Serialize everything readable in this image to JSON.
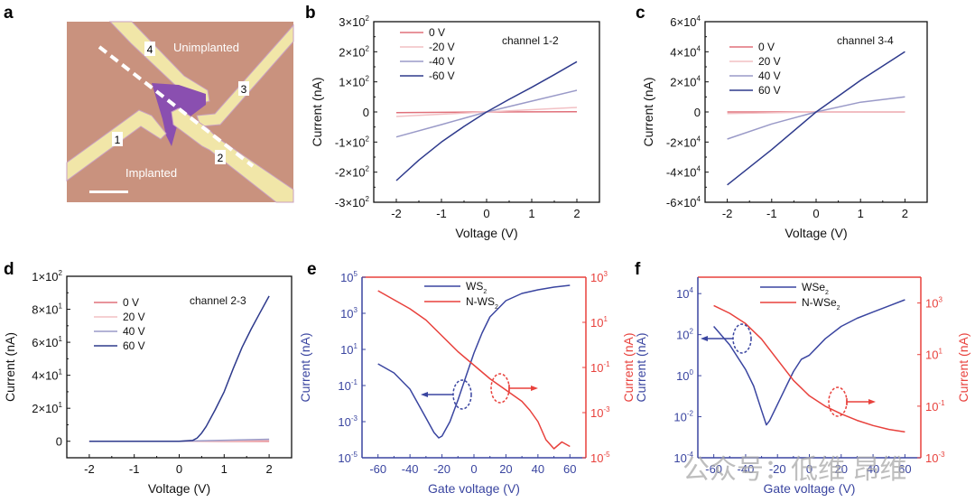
{
  "panels": {
    "a": {
      "label": "a",
      "unimplanted": "Unimplanted",
      "implanted": "Implanted",
      "electrodes": [
        "1",
        "2",
        "3",
        "4"
      ]
    }
  },
  "chart_data": [
    {
      "id": "b",
      "panel_label": "b",
      "type": "line",
      "title": "",
      "annotation": "channel 1-2",
      "xlabel": "Voltage (V)",
      "ylabel": "Current (nA)",
      "xlim": [
        -2.5,
        2.5
      ],
      "ylim": [
        -300,
        300
      ],
      "xticks": [
        -2,
        -1,
        0,
        1,
        2
      ],
      "xtick_labels": [
        "-2",
        "-1",
        "0",
        "1",
        "2"
      ],
      "yticks": [
        300,
        200,
        100,
        0,
        -100,
        -200,
        -300
      ],
      "ytick_labels": [
        [
          "3×10",
          "2"
        ],
        [
          "2×10",
          "2"
        ],
        [
          "1×10",
          "2"
        ],
        [
          "0",
          ""
        ],
        [
          "-1×10",
          "2"
        ],
        [
          "-2×10",
          "2"
        ],
        [
          "-3×10",
          "2"
        ]
      ],
      "legend_position": "top-left",
      "series": [
        {
          "name": "0 V",
          "color": "#e0707a",
          "x": [
            -2,
            0,
            2
          ],
          "y": [
            -2,
            0,
            1
          ]
        },
        {
          "name": "-20 V",
          "color": "#f2c0c4",
          "x": [
            -2,
            0,
            2
          ],
          "y": [
            -15,
            0,
            15
          ]
        },
        {
          "name": "-40 V",
          "color": "#9a9ac8",
          "x": [
            -2,
            -1,
            0,
            1,
            2
          ],
          "y": [
            -83,
            -42,
            0,
            36,
            72
          ]
        },
        {
          "name": "-60 V",
          "color": "#2e3a8c",
          "x": [
            -2,
            -1.5,
            -1,
            -0.5,
            0,
            0.5,
            1,
            1.5,
            2
          ],
          "y": [
            -228,
            -160,
            -100,
            -48,
            0,
            42,
            82,
            124,
            167
          ]
        }
      ]
    },
    {
      "id": "c",
      "panel_label": "c",
      "type": "line",
      "title": "",
      "annotation": "channel 3-4",
      "xlabel": "Voltage (V)",
      "ylabel": "Current (nA)",
      "xlim": [
        -2.5,
        2.5
      ],
      "ylim": [
        -60000,
        60000
      ],
      "xticks": [
        -2,
        -1,
        0,
        1,
        2
      ],
      "xtick_labels": [
        "-2",
        "-1",
        "0",
        "1",
        "2"
      ],
      "yticks": [
        60000,
        40000,
        20000,
        0,
        -20000,
        -40000,
        -60000
      ],
      "ytick_labels": [
        [
          "6×10",
          "4"
        ],
        [
          "4×10",
          "4"
        ],
        [
          "2×10",
          "4"
        ],
        [
          "0",
          ""
        ],
        [
          "-2×10",
          "4"
        ],
        [
          "-4×10",
          "4"
        ],
        [
          "-6×10",
          "4"
        ]
      ],
      "legend_position": "top-left",
      "series": [
        {
          "name": "0 V",
          "color": "#e0707a",
          "x": [
            -2,
            0,
            2
          ],
          "y": [
            0,
            0,
            0
          ]
        },
        {
          "name": "20 V",
          "color": "#f2c0c4",
          "x": [
            -2,
            0,
            2
          ],
          "y": [
            -1000,
            0,
            200
          ]
        },
        {
          "name": "40 V",
          "color": "#9a9ac8",
          "x": [
            -2,
            -1,
            0,
            1,
            2
          ],
          "y": [
            -18000,
            -8000,
            0,
            6500,
            10000
          ]
        },
        {
          "name": "60 V",
          "color": "#2e3a8c",
          "x": [
            -2,
            -1,
            0,
            1,
            2
          ],
          "y": [
            -48500,
            -25000,
            0,
            21000,
            40000
          ]
        }
      ]
    },
    {
      "id": "d",
      "panel_label": "d",
      "type": "line",
      "title": "",
      "annotation": "channel 2-3",
      "xlabel": "Voltage (V)",
      "ylabel": "Current (nA)",
      "xlim": [
        -2.5,
        2.5
      ],
      "ylim": [
        -10,
        100
      ],
      "xticks": [
        -2,
        -1,
        0,
        1,
        2
      ],
      "xtick_labels": [
        "-2",
        "-1",
        "0",
        "1",
        "2"
      ],
      "yticks": [
        100,
        80,
        60,
        40,
        20,
        0
      ],
      "ytick_labels": [
        [
          "1×10",
          "2"
        ],
        [
          "8×10",
          "1"
        ],
        [
          "6×10",
          "1"
        ],
        [
          "4×10",
          "1"
        ],
        [
          "2×10",
          "1"
        ],
        [
          "0",
          ""
        ]
      ],
      "legend_position": "top-left",
      "series": [
        {
          "name": "0 V",
          "color": "#e0707a",
          "x": [
            -2,
            0,
            2
          ],
          "y": [
            0,
            0,
            0
          ]
        },
        {
          "name": "20 V",
          "color": "#f2c0c4",
          "x": [
            -2,
            0,
            2
          ],
          "y": [
            0,
            0,
            0.5
          ]
        },
        {
          "name": "40 V",
          "color": "#9a9ac8",
          "x": [
            -2,
            0,
            2
          ],
          "y": [
            0,
            0,
            1.2
          ]
        },
        {
          "name": "60 V",
          "color": "#2e3a8c",
          "x": [
            -2,
            0,
            0.3,
            0.4,
            0.5,
            0.6,
            0.8,
            1.0,
            1.2,
            1.4,
            1.6,
            1.8,
            2.0
          ],
          "y": [
            0,
            0,
            0.5,
            2,
            5,
            9,
            19,
            30,
            44,
            57,
            68,
            78,
            88
          ]
        }
      ]
    },
    {
      "id": "e",
      "panel_label": "e",
      "type": "line",
      "title": "",
      "xlabel": "Gate voltage (V)",
      "ylabel": "Current (nA)",
      "ylabel_right": "Current (nA)",
      "xlim": [
        -70,
        70
      ],
      "ylim_log10": [
        -5,
        5
      ],
      "ylim_right_log10": [
        -5,
        3
      ],
      "xticks": [
        -60,
        -40,
        -20,
        0,
        20,
        40,
        60
      ],
      "xtick_labels": [
        "-60",
        "-40",
        "-20",
        "0",
        "20",
        "40",
        "60"
      ],
      "ytick_labels": [
        [
          "10",
          "5"
        ],
        [
          "10",
          "3"
        ],
        [
          "10",
          "1"
        ],
        [
          "10",
          "-1"
        ],
        [
          "10",
          "-3"
        ],
        [
          "10",
          "-5"
        ]
      ],
      "yticks_log10": [
        5,
        3,
        1,
        -1,
        -3,
        -5
      ],
      "ytick_right_labels": [
        [
          "10",
          "3"
        ],
        [
          "10",
          "1"
        ],
        [
          "10",
          "-1"
        ],
        [
          "10",
          "-3"
        ],
        [
          "10",
          "-5"
        ]
      ],
      "yticks_right_log10": [
        3,
        1,
        -1,
        -3,
        -5
      ],
      "legend_position": "top-center",
      "left_color": "#3a45a0",
      "right_color": "#e8413c",
      "series": [
        {
          "name": "WS",
          "sub": "2",
          "axis": "left",
          "color": "#3a45a0",
          "x": [
            -60,
            -50,
            -40,
            -35,
            -30,
            -25,
            -22,
            -20,
            -15,
            -10,
            -5,
            0,
            5,
            10,
            20,
            30,
            40,
            50,
            60
          ],
          "log10_y": [
            0.2,
            -0.3,
            -1.2,
            -2,
            -2.8,
            -3.6,
            -3.9,
            -3.8,
            -3.0,
            -1.8,
            -0.5,
            0.8,
            1.9,
            2.8,
            3.7,
            4.1,
            4.3,
            4.45,
            4.55
          ]
        },
        {
          "name": "N-WS",
          "sub": "2",
          "axis": "right",
          "color": "#e8413c",
          "x": [
            -60,
            -50,
            -40,
            -30,
            -20,
            -10,
            0,
            10,
            20,
            30,
            35,
            40,
            45,
            50,
            55,
            60
          ],
          "log10_y": [
            2.4,
            2.0,
            1.6,
            1.1,
            0.4,
            -0.3,
            -0.9,
            -1.5,
            -2.0,
            -2.5,
            -2.9,
            -3.4,
            -4.2,
            -4.6,
            -4.3,
            -4.5
          ]
        }
      ]
    },
    {
      "id": "f",
      "panel_label": "f",
      "type": "line",
      "title": "",
      "xlabel": "Gate voltage (V)",
      "ylabel": "Current (nA)",
      "ylabel_right": "Current (nA)",
      "xlim": [
        -70,
        70
      ],
      "ylim_log10": [
        -4,
        4.8
      ],
      "ylim_right_log10": [
        -3,
        4
      ],
      "xticks": [
        -60,
        -40,
        -20,
        0,
        20,
        40,
        60
      ],
      "xtick_labels": [
        "-60",
        "-40",
        "-20",
        "0",
        "20",
        "40",
        "60"
      ],
      "ytick_labels": [
        [
          "10",
          "4"
        ],
        [
          "10",
          "2"
        ],
        [
          "10",
          "0"
        ],
        [
          "10",
          "-2"
        ],
        [
          "10",
          "-4"
        ]
      ],
      "yticks_log10": [
        4,
        2,
        0,
        -2,
        -4
      ],
      "ytick_right_labels": [
        [
          "10",
          "3"
        ],
        [
          "10",
          "1"
        ],
        [
          "10",
          "-1"
        ],
        [
          "10",
          "-3"
        ]
      ],
      "yticks_right_log10": [
        3,
        1,
        -1,
        -3
      ],
      "legend_position": "top-center",
      "left_color": "#3a45a0",
      "right_color": "#e8413c",
      "series": [
        {
          "name": "WSe",
          "sub": "2",
          "axis": "left",
          "color": "#3a45a0",
          "x": [
            -60,
            -50,
            -40,
            -35,
            -30,
            -27,
            -25,
            -20,
            -15,
            -10,
            -5,
            0,
            5,
            10,
            20,
            30,
            40,
            50,
            60
          ],
          "log10_y": [
            2.4,
            1.5,
            0.3,
            -0.5,
            -1.7,
            -2.4,
            -2.2,
            -1.4,
            -0.6,
            0.2,
            0.8,
            1.0,
            1.4,
            1.8,
            2.4,
            2.8,
            3.1,
            3.4,
            3.7
          ]
        },
        {
          "name": "N-WSe",
          "sub": "2",
          "axis": "right",
          "color": "#e8413c",
          "x": [
            -60,
            -50,
            -40,
            -30,
            -20,
            -10,
            0,
            10,
            20,
            30,
            40,
            50,
            60
          ],
          "log10_y": [
            2.9,
            2.6,
            2.2,
            1.6,
            0.8,
            0.0,
            -0.6,
            -1.0,
            -1.3,
            -1.55,
            -1.75,
            -1.9,
            -2.0
          ]
        }
      ]
    }
  ],
  "watermark": "公众号：低维 昂维"
}
